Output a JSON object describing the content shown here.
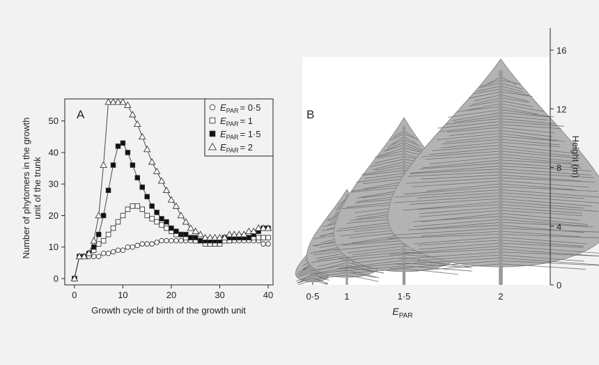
{
  "chart_data": [
    {
      "panel": "A",
      "type": "line",
      "xlabel": "Growth cycle of birth of the growth unit",
      "ylabel_lines": [
        "Number of phytomers in the growth",
        "unit of the trunk"
      ],
      "xlim": [
        -2,
        41
      ],
      "ylim": [
        -2,
        57
      ],
      "xticks": [
        0,
        10,
        20,
        30,
        40
      ],
      "yticks": [
        0,
        10,
        20,
        30,
        40,
        50
      ],
      "legend_position": "top-right",
      "series": [
        {
          "name": "EPAR = 0·5",
          "label_main": "E",
          "label_sub": "PAR",
          "label_value": "= 0·5",
          "marker": "circle",
          "x": [
            0,
            1,
            2,
            3,
            4,
            5,
            6,
            7,
            8,
            9,
            10,
            11,
            12,
            13,
            14,
            15,
            16,
            17,
            18,
            19,
            20,
            21,
            22,
            23,
            24,
            25,
            26,
            27,
            28,
            29,
            30,
            31,
            32,
            33,
            34,
            35,
            36,
            37,
            38,
            39,
            40
          ],
          "y": [
            0,
            7,
            7,
            7,
            7,
            7,
            8,
            8,
            8.5,
            9,
            9,
            10,
            10,
            10.5,
            11,
            11,
            11,
            11.5,
            12,
            12,
            12,
            12,
            12,
            12,
            12,
            12,
            12,
            12,
            12,
            12,
            12,
            12,
            12,
            12,
            12,
            12,
            12,
            12,
            12,
            11,
            11
          ]
        },
        {
          "name": "EPAR = 1",
          "label_main": "E",
          "label_sub": "PAR",
          "label_value": "= 1",
          "marker": "square-open",
          "x": [
            0,
            1,
            2,
            3,
            4,
            5,
            6,
            7,
            8,
            9,
            10,
            11,
            12,
            13,
            14,
            15,
            16,
            17,
            18,
            19,
            20,
            21,
            22,
            23,
            24,
            25,
            26,
            27,
            28,
            29,
            30,
            31,
            32,
            33,
            34,
            35,
            36,
            37,
            38,
            39,
            40
          ],
          "y": [
            0,
            7,
            7,
            8,
            9,
            11,
            12,
            14,
            16,
            18,
            20,
            22,
            23,
            23,
            22,
            20,
            19,
            18,
            17,
            16,
            15,
            14,
            14,
            13,
            13,
            12,
            12,
            11,
            11,
            11,
            11,
            12,
            12,
            13,
            13,
            13,
            13,
            13,
            13,
            13,
            13
          ]
        },
        {
          "name": "EPAR = 1·5",
          "label_main": "E",
          "label_sub": "PAR",
          "label_value": "= 1·5",
          "marker": "square-filled",
          "x": [
            0,
            1,
            2,
            3,
            4,
            5,
            6,
            7,
            8,
            9,
            10,
            11,
            12,
            13,
            14,
            15,
            16,
            17,
            18,
            19,
            20,
            21,
            22,
            23,
            24,
            25,
            26,
            27,
            28,
            29,
            30,
            31,
            32,
            33,
            34,
            35,
            36,
            37,
            38,
            39,
            40
          ],
          "y": [
            0,
            7,
            7,
            8,
            10,
            14,
            20,
            28,
            36,
            42,
            43,
            40,
            36,
            32,
            29,
            26,
            23,
            21,
            19,
            18,
            16,
            15,
            14,
            14,
            13,
            13,
            12,
            12,
            12,
            12,
            12,
            13,
            13,
            13,
            13,
            13,
            13,
            14,
            15,
            16,
            16
          ]
        },
        {
          "name": "EPAR = 2",
          "label_main": "E",
          "label_sub": "PAR",
          "label_value": "= 2",
          "marker": "triangle",
          "x": [
            0,
            1,
            2,
            3,
            4,
            5,
            6,
            7,
            8,
            9,
            10,
            11,
            12,
            13,
            14,
            15,
            16,
            17,
            18,
            19,
            20,
            21,
            22,
            23,
            24,
            25,
            26,
            27,
            28,
            29,
            30,
            31,
            32,
            33,
            34,
            35,
            36,
            37,
            38,
            39,
            40
          ],
          "y": [
            0,
            7,
            7,
            8,
            12,
            20,
            36,
            56,
            56,
            56,
            56,
            55,
            52,
            49,
            45,
            41,
            37,
            34,
            31,
            28,
            25,
            23,
            20,
            18,
            16,
            15,
            14,
            13,
            13,
            13,
            13,
            13,
            14,
            14,
            14,
            14,
            15,
            15,
            16,
            16,
            16
          ]
        }
      ]
    },
    {
      "panel": "B",
      "type": "scatter",
      "xlabel_main": "E",
      "xlabel_sub": "PAR",
      "ylabel": "Height (m)",
      "ylim": [
        0,
        17
      ],
      "yticks": [
        0,
        4,
        8,
        12,
        16
      ],
      "axis_side": "right",
      "categories": [
        "0·5",
        "1",
        "1·5",
        "2"
      ],
      "values": [
        2.6,
        6.5,
        11.4,
        15.4
      ],
      "trunk_color": "#9a9a9a"
    }
  ]
}
